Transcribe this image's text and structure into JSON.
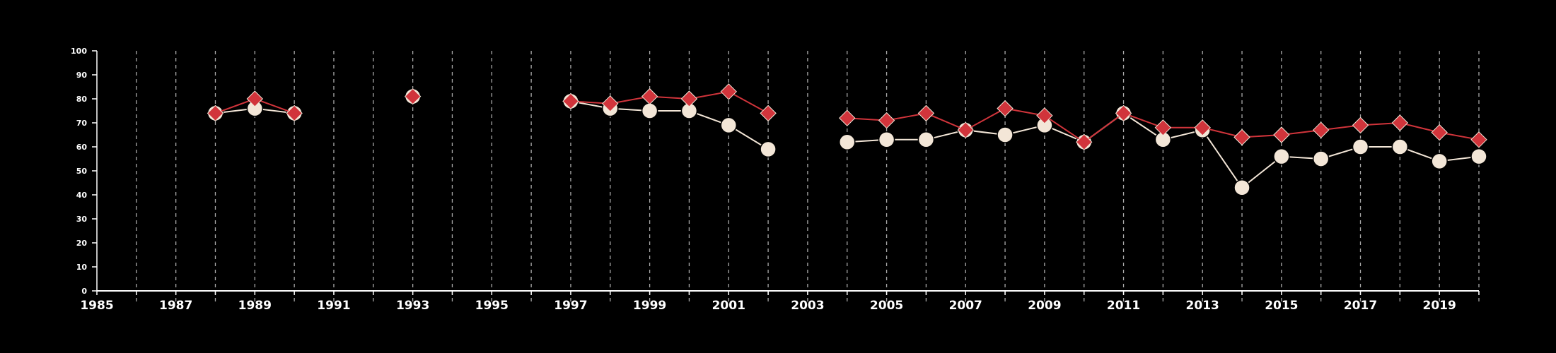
{
  "chart_data": {
    "type": "line",
    "title": "",
    "xlabel": "",
    "ylabel": "",
    "xlim": [
      1985,
      2020
    ],
    "ylim": [
      0,
      100
    ],
    "x_ticks": [
      1985,
      1987,
      1989,
      1991,
      1993,
      1995,
      1997,
      1999,
      2001,
      2003,
      2005,
      2007,
      2009,
      2011,
      2013,
      2015,
      2017,
      2019
    ],
    "y_ticks": [
      0,
      10,
      20,
      30,
      40,
      50,
      60,
      70,
      80,
      90,
      100
    ],
    "grid": "vertical dashed lines at every year",
    "legend": "none",
    "background": "#000000",
    "series": [
      {
        "marker": "diamond",
        "color": "#d1343b",
        "points": [
          [
            1988,
            74
          ],
          [
            1989,
            80
          ],
          [
            1990,
            74
          ],
          [
            1993,
            81
          ],
          [
            1997,
            79
          ],
          [
            1998,
            78
          ],
          [
            1999,
            81
          ],
          [
            2000,
            80
          ],
          [
            2001,
            83
          ],
          [
            2002,
            74
          ],
          [
            2004,
            72
          ],
          [
            2005,
            71
          ],
          [
            2006,
            74
          ],
          [
            2007,
            67
          ],
          [
            2008,
            76
          ],
          [
            2009,
            73
          ],
          [
            2010,
            62
          ],
          [
            2011,
            74
          ],
          [
            2012,
            68
          ],
          [
            2013,
            68
          ],
          [
            2014,
            64
          ],
          [
            2015,
            65
          ],
          [
            2016,
            67
          ],
          [
            2017,
            69
          ],
          [
            2018,
            70
          ],
          [
            2019,
            66
          ],
          [
            2020,
            63
          ]
        ]
      },
      {
        "marker": "circle",
        "color": "#f3e6d7",
        "points": [
          [
            1988,
            74
          ],
          [
            1989,
            76
          ],
          [
            1990,
            74
          ],
          [
            1993,
            81
          ],
          [
            1997,
            79
          ],
          [
            1998,
            76
          ],
          [
            1999,
            75
          ],
          [
            2000,
            75
          ],
          [
            2001,
            69
          ],
          [
            2002,
            59
          ],
          [
            2004,
            62
          ],
          [
            2005,
            63
          ],
          [
            2006,
            63
          ],
          [
            2007,
            67
          ],
          [
            2008,
            65
          ],
          [
            2009,
            69
          ],
          [
            2010,
            62
          ],
          [
            2011,
            74
          ],
          [
            2012,
            63
          ],
          [
            2013,
            67
          ],
          [
            2014,
            43
          ],
          [
            2015,
            56
          ],
          [
            2016,
            55
          ],
          [
            2017,
            60
          ],
          [
            2018,
            60
          ],
          [
            2019,
            54
          ],
          [
            2020,
            56
          ]
        ]
      }
    ]
  }
}
